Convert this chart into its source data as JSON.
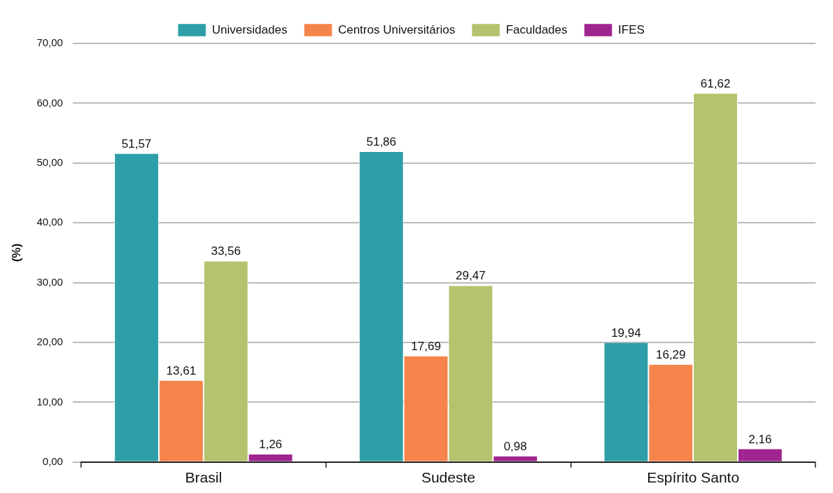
{
  "chart_data": {
    "type": "bar",
    "ylabel": "(%)",
    "categories": [
      "Brasil",
      "Sudeste",
      "Espírito Santo"
    ],
    "series": [
      {
        "name": "Universidades",
        "color": "#2e9fa8",
        "values": [
          51.57,
          51.86,
          19.94
        ],
        "value_labels": [
          "51,57",
          "51,86",
          "19,94"
        ]
      },
      {
        "name": "Centros Universitários",
        "color": "#f5844a",
        "values": [
          13.61,
          17.69,
          16.29
        ],
        "value_labels": [
          "13,61",
          "17,69",
          "16,29"
        ]
      },
      {
        "name": "Faculdades",
        "color": "#b3c36e",
        "values": [
          33.56,
          29.47,
          61.62
        ],
        "value_labels": [
          "33,56",
          "29,47",
          "61,62"
        ]
      },
      {
        "name": "IFES",
        "color": "#a0258f",
        "values": [
          1.26,
          0.98,
          2.16
        ],
        "value_labels": [
          "1,26",
          "0,98",
          "2,16"
        ]
      }
    ],
    "ylim": [
      0,
      70
    ],
    "yticks": [
      {
        "value": 0,
        "label": "0,00"
      },
      {
        "value": 10,
        "label": "10,00"
      },
      {
        "value": 20,
        "label": "20,00"
      },
      {
        "value": 30,
        "label": "30,00"
      },
      {
        "value": 40,
        "label": "40,00"
      },
      {
        "value": 50,
        "label": "50,00"
      },
      {
        "value": 60,
        "label": "60,00"
      },
      {
        "value": 70,
        "label": "70,00"
      }
    ],
    "grid": "y",
    "legend": "top"
  }
}
